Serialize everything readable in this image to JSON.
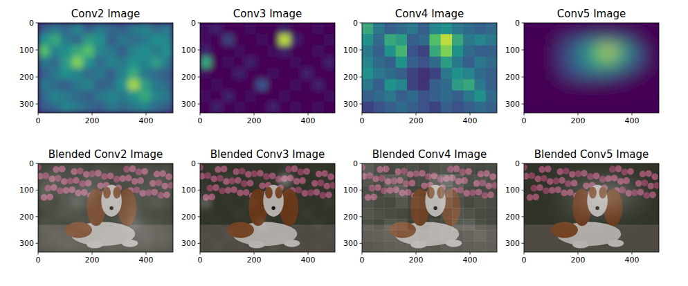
{
  "chart_data": [
    {
      "type": "heatmap",
      "title": "Conv2 Image",
      "xlim": [
        0,
        500
      ],
      "ylim": [
        333,
        0
      ],
      "xticks": [
        0,
        200,
        400
      ],
      "yticks": [
        0,
        100,
        200,
        300
      ],
      "cells": [
        [
          0.3,
          0.4,
          0.35,
          0.45,
          0.3,
          0.4,
          0.35,
          0.3,
          0.4,
          0.45,
          0.35,
          0.4
        ],
        [
          0.5,
          0.6,
          0.4,
          0.35,
          0.55,
          0.5,
          0.3,
          0.4,
          0.35,
          0.4,
          0.5,
          0.45
        ],
        [
          0.7,
          0.45,
          0.5,
          0.6,
          0.7,
          0.45,
          0.4,
          0.3,
          0.45,
          0.5,
          0.4,
          0.5
        ],
        [
          0.4,
          0.35,
          0.55,
          0.8,
          0.5,
          0.35,
          0.45,
          0.4,
          0.5,
          0.45,
          0.55,
          0.4
        ],
        [
          0.3,
          0.4,
          0.5,
          0.45,
          0.35,
          0.4,
          0.3,
          0.45,
          0.6,
          0.4,
          0.35,
          0.3
        ],
        [
          0.4,
          0.35,
          0.3,
          0.4,
          0.45,
          0.3,
          0.35,
          0.5,
          0.85,
          0.55,
          0.4,
          0.35
        ],
        [
          0.35,
          0.45,
          0.4,
          0.35,
          0.3,
          0.4,
          0.45,
          0.4,
          0.5,
          0.6,
          0.45,
          0.4
        ],
        [
          0.3,
          0.35,
          0.45,
          0.4,
          0.35,
          0.3,
          0.4,
          0.35,
          0.4,
          0.45,
          0.35,
          0.3
        ]
      ]
    },
    {
      "type": "heatmap",
      "title": "Conv3 Image",
      "xlim": [
        0,
        500
      ],
      "ylim": [
        333,
        0
      ],
      "xticks": [
        0,
        200,
        400
      ],
      "yticks": [
        0,
        100,
        200,
        300
      ],
      "cells": [
        [
          0.05,
          0.1,
          0,
          0,
          0.05,
          0,
          0,
          0.1,
          0,
          0,
          0.05,
          0
        ],
        [
          0.05,
          0,
          0.2,
          0,
          0,
          0.05,
          0,
          0.9,
          0.1,
          0,
          0,
          0.05
        ],
        [
          0.1,
          0,
          0,
          0.05,
          0,
          0,
          0.05,
          0.1,
          0,
          0,
          0.05,
          0
        ],
        [
          0.6,
          0,
          0.05,
          0,
          0.1,
          0,
          0,
          0,
          0.05,
          0,
          0,
          0.1
        ],
        [
          0.05,
          0,
          0,
          0.1,
          0,
          0,
          0.05,
          0,
          0,
          0.1,
          0,
          0
        ],
        [
          0,
          0.05,
          0,
          0,
          0,
          0.25,
          0,
          0,
          0.05,
          0,
          0.1,
          0
        ],
        [
          0.05,
          0,
          0.1,
          0,
          0.05,
          0,
          0,
          0.05,
          0,
          0,
          0,
          0.05
        ],
        [
          0,
          0.1,
          0,
          0.05,
          0,
          0,
          0.1,
          0,
          0.05,
          0,
          0.05,
          0
        ]
      ]
    },
    {
      "type": "heatmap",
      "title": "Conv4 Image",
      "xlim": [
        0,
        500
      ],
      "ylim": [
        333,
        0
      ],
      "xticks": [
        0,
        200,
        400
      ],
      "yticks": [
        0,
        100,
        200,
        300
      ],
      "cells": [
        [
          0.6,
          0.4,
          0.3,
          0.35,
          0.4,
          0.3,
          0.45,
          0.5,
          0.4,
          0.35,
          0.3,
          0.35
        ],
        [
          0.5,
          0.35,
          0.6,
          0.55,
          0.3,
          0.35,
          0.7,
          0.9,
          0.6,
          0.4,
          0.45,
          0.4
        ],
        [
          0.4,
          0.3,
          0.5,
          0.65,
          0.25,
          0.2,
          0.6,
          0.8,
          0.5,
          0.35,
          0.3,
          0.3
        ],
        [
          0.45,
          0.35,
          0.3,
          0.5,
          0.3,
          0.25,
          0.35,
          0.55,
          0.4,
          0.3,
          0.4,
          0.35
        ],
        [
          0.5,
          0.4,
          0.35,
          0.3,
          0.2,
          0.15,
          0.2,
          0.4,
          0.5,
          0.45,
          0.35,
          0.3
        ],
        [
          0.4,
          0.3,
          0.5,
          0.45,
          0.2,
          0.15,
          0.3,
          0.35,
          0.55,
          0.6,
          0.4,
          0.3
        ],
        [
          0.3,
          0.35,
          0.4,
          0.3,
          0.35,
          0.25,
          0.3,
          0.35,
          0.3,
          0.4,
          0.5,
          0.35
        ],
        [
          0.2,
          0.25,
          0.3,
          0.35,
          0.3,
          0.25,
          0.2,
          0.3,
          0.25,
          0.3,
          0.35,
          0.3
        ]
      ]
    },
    {
      "type": "heatmap",
      "title": "Conv5 Image",
      "xlim": [
        0,
        500
      ],
      "ylim": [
        333,
        0
      ],
      "xticks": [
        0,
        200,
        400
      ],
      "yticks": [
        0,
        100,
        200,
        300
      ],
      "cells": [
        [
          0,
          0,
          0,
          0,
          0,
          0,
          0,
          0,
          0,
          0,
          0,
          0
        ],
        [
          0,
          0,
          0,
          0.15,
          0.2,
          0.3,
          0.35,
          0.35,
          0.3,
          0.2,
          0,
          0
        ],
        [
          0,
          0,
          0,
          0.2,
          0.35,
          0.5,
          0.75,
          0.95,
          0.7,
          0.4,
          0.2,
          0
        ],
        [
          0,
          0,
          0,
          0.2,
          0.3,
          0.45,
          0.6,
          0.65,
          0.5,
          0.35,
          0.2,
          0
        ],
        [
          0,
          0,
          0,
          0.15,
          0.25,
          0.3,
          0.3,
          0.25,
          0.2,
          0.1,
          0,
          0
        ],
        [
          0,
          0,
          0,
          0,
          0,
          0,
          0,
          0,
          0,
          0,
          0,
          0
        ],
        [
          0,
          0,
          0,
          0,
          0,
          0,
          0,
          0,
          0,
          0,
          0,
          0
        ],
        [
          0,
          0,
          0,
          0,
          0,
          0,
          0,
          0,
          0,
          0,
          0,
          0
        ]
      ]
    },
    {
      "type": "image",
      "title": "Blended Conv2 Image",
      "xlim": [
        0,
        500
      ],
      "ylim": [
        333,
        0
      ],
      "xticks": [
        0,
        200,
        400
      ],
      "yticks": [
        0,
        100,
        200,
        300
      ]
    },
    {
      "type": "image",
      "title": "Blended Conv3 Image",
      "xlim": [
        0,
        500
      ],
      "ylim": [
        333,
        0
      ],
      "xticks": [
        0,
        200,
        400
      ],
      "yticks": [
        0,
        100,
        200,
        300
      ]
    },
    {
      "type": "image",
      "title": "Blended Conv4 Image",
      "xlim": [
        0,
        500
      ],
      "ylim": [
        333,
        0
      ],
      "xticks": [
        0,
        200,
        400
      ],
      "yticks": [
        0,
        100,
        200,
        300
      ]
    },
    {
      "type": "image",
      "title": "Blended Conv5 Image",
      "xlim": [
        0,
        500
      ],
      "ylim": [
        333,
        0
      ],
      "xticks": [
        0,
        200,
        400
      ],
      "yticks": [
        0,
        100,
        200,
        300
      ]
    }
  ]
}
